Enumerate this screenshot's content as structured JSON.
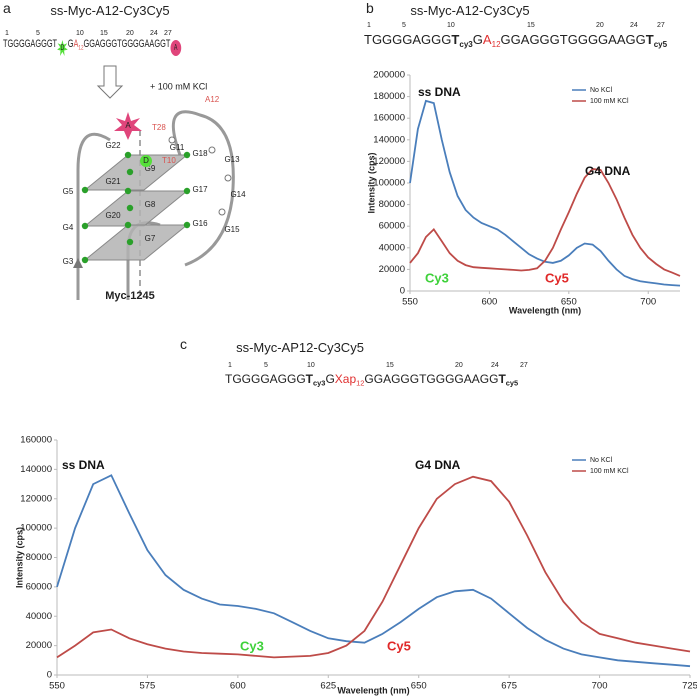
{
  "panel_a": {
    "label": "a",
    "title": "ss-Myc-A12-Cy3Cy5",
    "positions": [
      1,
      5,
      10,
      15,
      20,
      24,
      27
    ],
    "sequence": [
      {
        "text": "TGGGGAGGGT"
      },
      {
        "text": "D",
        "marker": "star",
        "color": "#55e03a"
      },
      {
        "text": "G"
      },
      {
        "text": "A",
        "color": "#d9534f"
      },
      {
        "text": "12",
        "sub": true,
        "color": "#d9534f"
      },
      {
        "text": "GGAGGGTGGGGAAGGT"
      },
      {
        "text": "A",
        "marker": "circle",
        "color": "#e0457b"
      }
    ],
    "condition": "+ 100 mM KCl",
    "nodes": [
      "G22",
      "G9",
      "G18",
      "G5",
      "G21",
      "G8",
      "G17",
      "G4",
      "G20",
      "G7",
      "G16",
      "G3",
      "G11",
      "G13",
      "G14",
      "G15"
    ],
    "residues": [
      "A12",
      "T28",
      "T10"
    ],
    "markers": [
      "A",
      "D"
    ],
    "name": "Myc-1245"
  },
  "chart_data": [
    {
      "type": "line",
      "panel": "b",
      "title": "ss-Myc-A12-Cy3Cy5",
      "positions": [
        1,
        5,
        10,
        15,
        20,
        24,
        27
      ],
      "sequence": [
        {
          "text": "TGGGGAGGG"
        },
        {
          "text": "T",
          "bold": true
        },
        {
          "text": "cy3",
          "sub": true,
          "bold": true
        },
        {
          "text": "G"
        },
        {
          "text": "A",
          "color": "#e03030"
        },
        {
          "text": "12",
          "sub": true,
          "color": "#e03030"
        },
        {
          "text": "GGAGGGTGGGGAAGG"
        },
        {
          "text": "T",
          "bold": true
        },
        {
          "text": "cy5",
          "sub": true,
          "bold": true
        }
      ],
      "xlabel": "Wavelength (nm)",
      "ylabel": "Intensity (cps)",
      "x": [
        550,
        555,
        560,
        565,
        570,
        575,
        580,
        585,
        590,
        595,
        600,
        605,
        610,
        615,
        620,
        625,
        630,
        635,
        640,
        645,
        650,
        655,
        660,
        665,
        670,
        675,
        680,
        685,
        690,
        695,
        700,
        705,
        710,
        715,
        720
      ],
      "series": [
        {
          "name": "No KCl",
          "color": "#4a7ebb",
          "values": [
            100000,
            150000,
            176000,
            174000,
            140000,
            110000,
            88000,
            75000,
            68000,
            63000,
            60000,
            57000,
            52000,
            46000,
            40000,
            34000,
            30000,
            27000,
            26000,
            28000,
            33000,
            40000,
            44000,
            43000,
            37000,
            28000,
            20000,
            14000,
            11000,
            9000,
            8000,
            7000,
            6000,
            5500,
            5000
          ]
        },
        {
          "name": "100 mM KCl",
          "color": "#be4b48",
          "values": [
            26000,
            35000,
            50000,
            57000,
            46000,
            35000,
            28000,
            24000,
            22000,
            21500,
            21000,
            20500,
            20000,
            19500,
            19000,
            19500,
            21000,
            28000,
            40000,
            57000,
            73000,
            90000,
            105000,
            113000,
            112000,
            100000,
            85000,
            68000,
            52000,
            40000,
            31000,
            25000,
            20000,
            17000,
            14000
          ]
        }
      ],
      "xlim": [
        550,
        720
      ],
      "xticks": [
        550,
        600,
        650,
        700
      ],
      "ylim": [
        0,
        200000
      ],
      "yticks": [
        0,
        20000,
        40000,
        60000,
        80000,
        100000,
        120000,
        140000,
        160000,
        180000,
        200000
      ],
      "legend": "upper right",
      "annotations": [
        {
          "text": "ss DNA",
          "color": "#111111"
        },
        {
          "text": "G4 DNA",
          "color": "#111111"
        },
        {
          "text": "Cy3",
          "color": "#3ed13a"
        },
        {
          "text": "Cy5",
          "color": "#e02828"
        }
      ]
    },
    {
      "type": "line",
      "panel": "c",
      "title": "ss-Myc-AP12-Cy3Cy5",
      "positions": [
        1,
        5,
        10,
        15,
        20,
        24,
        27
      ],
      "sequence": [
        {
          "text": "TGGGGAGGG"
        },
        {
          "text": "T",
          "bold": true
        },
        {
          "text": "cy3",
          "sub": true,
          "bold": true
        },
        {
          "text": "G"
        },
        {
          "text": "Xap",
          "color": "#e03030"
        },
        {
          "text": "12",
          "sub": true,
          "color": "#e03030"
        },
        {
          "text": "GGAGGGTGGGGAAGG"
        },
        {
          "text": "T",
          "bold": true
        },
        {
          "text": "cy5",
          "sub": true,
          "bold": true
        }
      ],
      "xlabel": "Wavelength (nm)",
      "ylabel": "Intensity (cps)",
      "x": [
        550,
        555,
        560,
        565,
        570,
        575,
        580,
        585,
        590,
        595,
        600,
        605,
        610,
        615,
        620,
        625,
        630,
        635,
        640,
        645,
        650,
        655,
        660,
        665,
        670,
        675,
        680,
        685,
        690,
        695,
        700,
        705,
        710,
        715,
        720,
        725
      ],
      "series": [
        {
          "name": "No KCl",
          "color": "#4a7ebb",
          "values": [
            60000,
            100000,
            130000,
            136000,
            110000,
            85000,
            68000,
            58000,
            52000,
            48000,
            47000,
            45000,
            42000,
            36000,
            30000,
            25000,
            23000,
            22000,
            28000,
            36000,
            45000,
            53000,
            57000,
            58000,
            52000,
            42000,
            32000,
            24000,
            18000,
            14000,
            12000,
            10000,
            9000,
            8000,
            7000,
            6000
          ]
        },
        {
          "name": "100 mM KCl",
          "color": "#be4b48",
          "values": [
            12000,
            20000,
            29000,
            31000,
            25000,
            21000,
            18000,
            16000,
            15000,
            14500,
            14000,
            13000,
            12000,
            12500,
            13000,
            15000,
            20000,
            30000,
            50000,
            75000,
            100000,
            120000,
            130000,
            135000,
            132000,
            118000,
            95000,
            70000,
            50000,
            36000,
            28000,
            25000,
            22000,
            20000,
            18000,
            16000
          ]
        }
      ],
      "xlim": [
        550,
        725
      ],
      "xticks": [
        550,
        575,
        600,
        625,
        650,
        675,
        700,
        725
      ],
      "ylim": [
        0,
        160000
      ],
      "yticks": [
        0,
        20000,
        40000,
        60000,
        80000,
        100000,
        120000,
        140000,
        160000
      ],
      "legend": "upper right",
      "annotations": [
        {
          "text": "ss DNA",
          "color": "#111111"
        },
        {
          "text": "G4 DNA",
          "color": "#111111"
        },
        {
          "text": "Cy3",
          "color": "#3ed13a"
        },
        {
          "text": "Cy5",
          "color": "#e02828"
        }
      ]
    }
  ]
}
